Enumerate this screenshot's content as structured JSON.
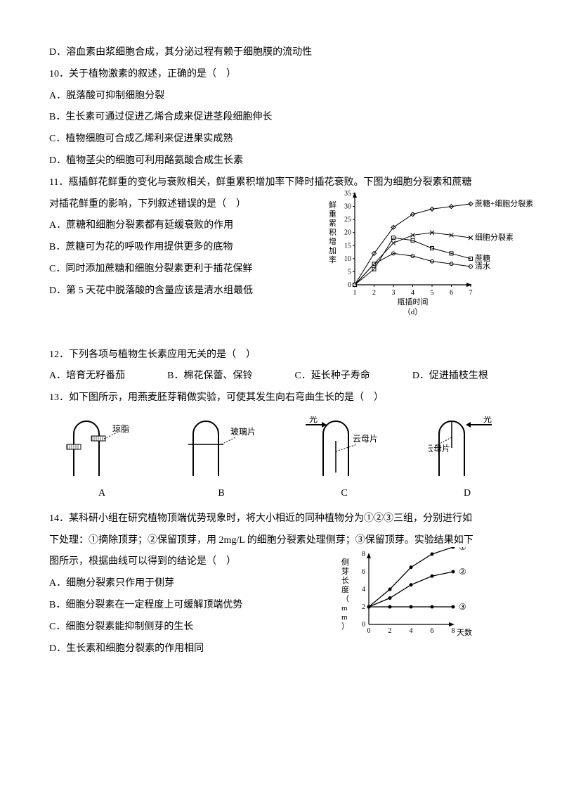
{
  "q9d": "D．溶血素由浆细胞合成，其分泌过程有赖于细胞膜的流动性",
  "q10": {
    "stem": "10．关于植物激素的叙述，正确的是（　）",
    "a": "A．脱落酸可抑制细胞分裂",
    "b": "B．生长素可通过促进乙烯合成来促进茎段细胞伸长",
    "c": "C．植物细胞可合成乙烯利来促进果实成熟",
    "d": "D．植物茎尖的细胞可利用酪氨酸合成生长素"
  },
  "q11": {
    "stem1": "11．瓶插鲜花鲜重的变化与衰败相关，鲜重累积增加率下降时插花衰败。下图为细胞分裂素和蔗糖",
    "stem2": "对插花鲜重的影响，下列叙述错误的是（　）",
    "a": "A．蔗糖和细胞分裂素都有延缓衰败的作用",
    "b": "B．蔗糖可为花的呼吸作用提供更多的底物",
    "c": "C．同时添加蔗糖和细胞分裂素更利于插花保鲜",
    "d": "D．第 5 天花中脱落酸的含量应该是清水组最低",
    "chart": {
      "ylabel": "鲜重累积增加率",
      "xlabel": "瓶插时间",
      "xunit": "（d）",
      "yticks": [
        0,
        5,
        10,
        15,
        20,
        25,
        30,
        35
      ],
      "xticks": [
        1,
        2,
        3,
        4,
        5,
        6,
        7
      ],
      "series": [
        {
          "name": "蔗糖+细胞分裂素",
          "marker": "diamond",
          "data": [
            0,
            12,
            22,
            27,
            29,
            30,
            31
          ]
        },
        {
          "name": "细胞分裂素",
          "marker": "x",
          "data": [
            0,
            8,
            16,
            19,
            20,
            19,
            18
          ]
        },
        {
          "name": "蔗糖",
          "marker": "square",
          "data": [
            0,
            6,
            18,
            17,
            14,
            12,
            10
          ]
        },
        {
          "name": "清水",
          "marker": "circle",
          "data": [
            0,
            8,
            12,
            11,
            9,
            8,
            7
          ]
        }
      ],
      "colors": {
        "axis": "#000",
        "line": "#000",
        "bg": "#fff"
      }
    }
  },
  "q12": {
    "stem": "12．下列各项与植物生长素应用无关的是（　）",
    "a": "A．培育无籽番茄",
    "b": "B．棉花保蕾、保铃",
    "c": "C．延长种子寿命",
    "d": "D．促进插枝生根"
  },
  "q13": {
    "stem": "13．如下图所示，用燕麦胚芽鞘做实验，可使其发生向右弯曲生长的是（　）",
    "labels": {
      "a": "A",
      "b": "B",
      "c": "C",
      "d": "D"
    },
    "materials": {
      "agar": "琼脂",
      "glass": "玻璃片",
      "mica": "云母片",
      "light": "光"
    }
  },
  "q14": {
    "stem1": "14．某科研小组在研究植物顶端优势现象时，将大小相近的同种植物分为①②③三组，分别进行如",
    "stem2": "下处理：①摘除顶芽；②保留顶芽，用 2mg/L 的细胞分裂素处理侧芽；③保留顶芽。实验结果如下",
    "stem3": "图所示，根据曲线可以得到的结论是（　）",
    "a": "A．细胞分裂素只作用于侧芽",
    "b": "B．细胞分裂素在一定程度上可缓解顶端优势",
    "c": "C．细胞分裂素能抑制侧芽的生长",
    "d": "D．生长素和细胞分裂素的作用相同",
    "chart": {
      "ylabel": "侧芽长度（mm）",
      "xlabel": "天数",
      "yticks": [
        0,
        2,
        4,
        6,
        8
      ],
      "xticks": [
        0,
        2,
        4,
        6,
        8
      ],
      "series_labels": [
        "①",
        "②",
        "③"
      ],
      "data": [
        [
          2,
          4,
          6.5,
          8,
          8.8
        ],
        [
          2,
          3,
          4.5,
          5.5,
          6
        ],
        [
          2,
          2,
          2,
          2,
          2
        ]
      ],
      "colors": {
        "axis": "#000",
        "line": "#000"
      }
    }
  }
}
